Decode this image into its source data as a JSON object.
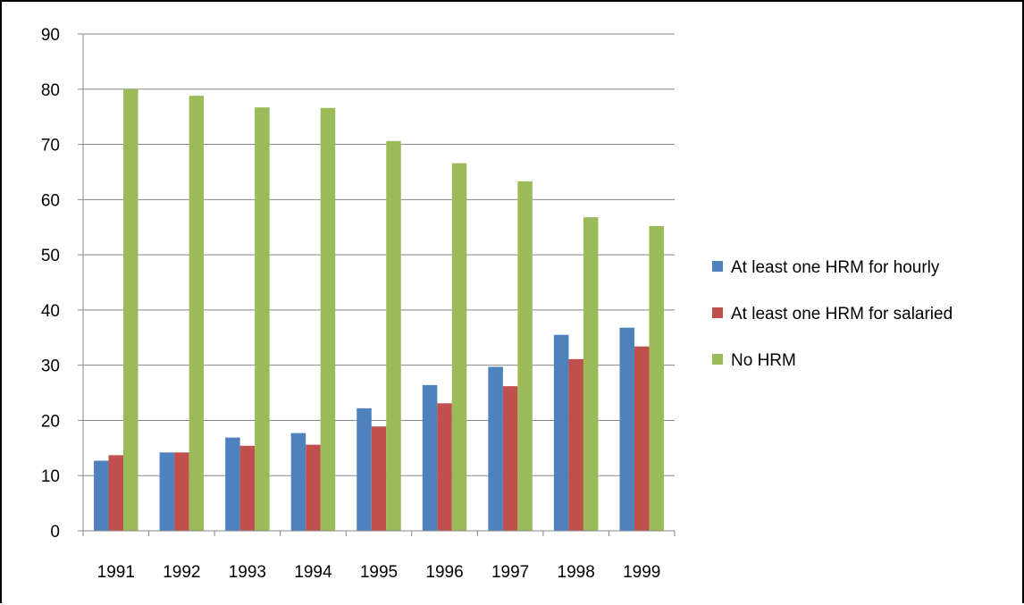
{
  "chart_data": {
    "type": "bar",
    "categories": [
      "1991",
      "1992",
      "1993",
      "1994",
      "1995",
      "1996",
      "1997",
      "1998",
      "1999"
    ],
    "series": [
      {
        "name": "At least one HRM for hourly",
        "color": "#4f81bd",
        "values": [
          12.7,
          14.2,
          16.9,
          17.7,
          22.2,
          26.4,
          29.7,
          35.5,
          36.8
        ]
      },
      {
        "name": "At least one HRM for salaried",
        "color": "#c0504d",
        "values": [
          13.7,
          14.2,
          15.4,
          15.6,
          18.9,
          23.1,
          26.2,
          31.1,
          33.4
        ]
      },
      {
        "name": "No HRM",
        "color": "#9bbb59",
        "values": [
          80.0,
          78.8,
          76.7,
          76.6,
          70.6,
          66.6,
          63.3,
          56.8,
          55.2
        ]
      }
    ],
    "ylim": [
      0,
      90
    ],
    "yticks": [
      0,
      10,
      20,
      30,
      40,
      50,
      60,
      70,
      80,
      90
    ],
    "grid": true,
    "legend_position": "right",
    "title": "",
    "xlabel": "",
    "ylabel": ""
  }
}
